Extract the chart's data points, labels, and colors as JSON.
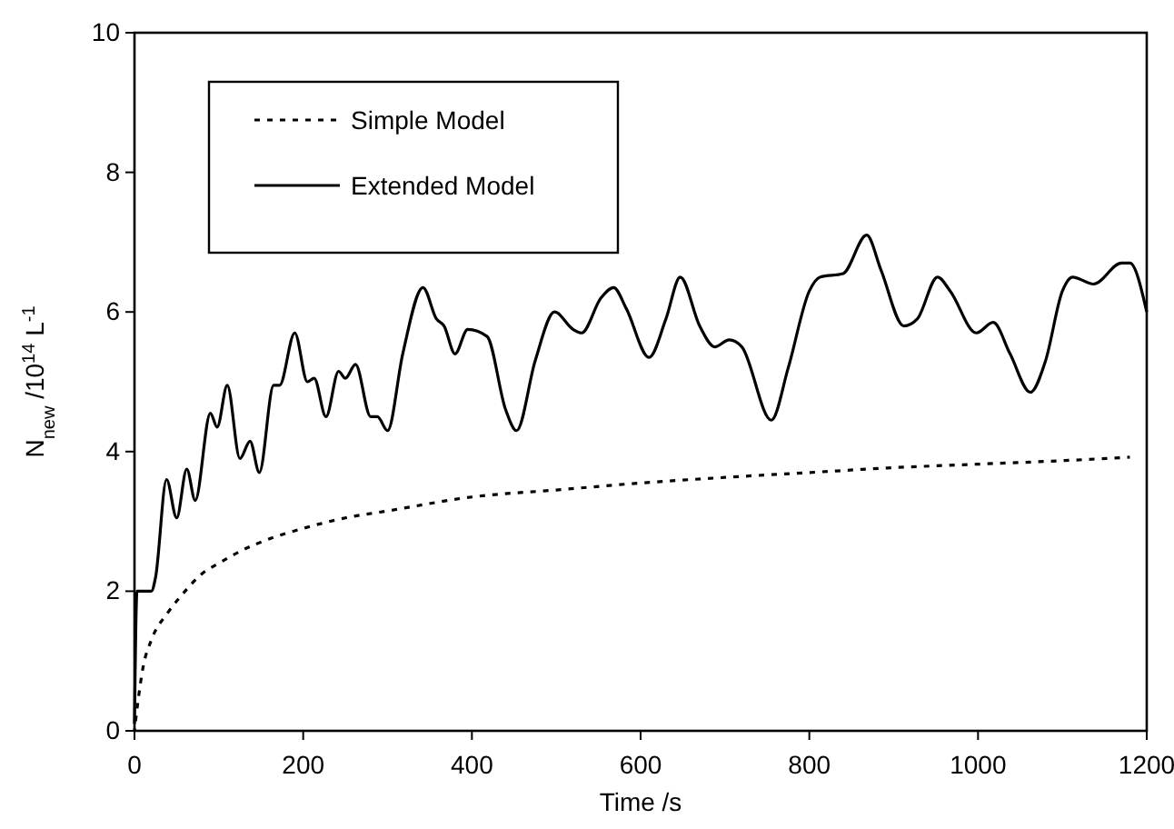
{
  "chart_data": {
    "type": "line",
    "xlabel": "Time /s",
    "ylabel": "N$_{new}$ /10$^{14}$ L$^{-1}$",
    "xlim": [
      0,
      1200
    ],
    "xticks": [
      0,
      200,
      400,
      600,
      800,
      1000,
      1200
    ],
    "ylim": [
      0,
      10
    ],
    "yticks": [
      0,
      2,
      4,
      6,
      8,
      10
    ],
    "grid": false,
    "legend": "top left",
    "marker": "none",
    "series": [
      {
        "name": "Simple Model",
        "color": "#000000",
        "line_style": "dotted",
        "x": [
          0,
          5,
          10,
          20,
          40,
          60,
          80,
          100,
          130,
          160,
          200,
          250,
          300,
          400,
          500,
          600,
          700,
          800,
          900,
          1000,
          1100,
          1180
        ],
        "values": [
          0,
          0.5,
          0.9,
          1.3,
          1.7,
          2.0,
          2.25,
          2.4,
          2.6,
          2.75,
          2.9,
          3.05,
          3.15,
          3.35,
          3.45,
          3.55,
          3.63,
          3.7,
          3.77,
          3.82,
          3.87,
          3.92
        ]
      },
      {
        "name": "Extended Model",
        "color": "#000000",
        "line_style": "solid",
        "x": [
          0,
          3,
          20,
          25,
          38,
          50,
          62,
          72,
          90,
          98,
          110,
          125,
          137,
          148,
          165,
          172,
          190,
          205,
          213,
          227,
          242,
          250,
          262,
          280,
          288,
          300,
          318,
          342,
          358,
          367,
          380,
          395,
          418,
          440,
          453,
          475,
          498,
          520,
          530,
          553,
          568,
          583,
          610,
          630,
          647,
          670,
          688,
          705,
          720,
          755,
          775,
          800,
          813,
          840,
          868,
          885,
          912,
          928,
          952,
          967,
          998,
          1018,
          1038,
          1062,
          1080,
          1100,
          1112,
          1137,
          1170,
          1180,
          1200
        ],
        "values": [
          0.1,
          2.0,
          2.0,
          2.2,
          3.6,
          3.05,
          3.75,
          3.3,
          4.55,
          4.35,
          4.95,
          3.9,
          4.15,
          3.7,
          4.95,
          4.95,
          5.7,
          5.0,
          5.05,
          4.5,
          5.15,
          5.05,
          5.25,
          4.5,
          4.5,
          4.3,
          5.4,
          6.35,
          5.9,
          5.8,
          5.4,
          5.75,
          5.65,
          4.6,
          4.3,
          5.3,
          6.0,
          5.75,
          5.7,
          6.2,
          6.35,
          6.05,
          5.35,
          5.9,
          6.5,
          5.8,
          5.5,
          5.6,
          5.5,
          4.45,
          5.2,
          6.3,
          6.5,
          6.55,
          7.1,
          6.6,
          5.8,
          5.9,
          6.5,
          6.3,
          5.7,
          5.85,
          5.4,
          4.85,
          5.3,
          6.3,
          6.5,
          6.4,
          6.7,
          6.7,
          6.0
        ]
      }
    ]
  }
}
